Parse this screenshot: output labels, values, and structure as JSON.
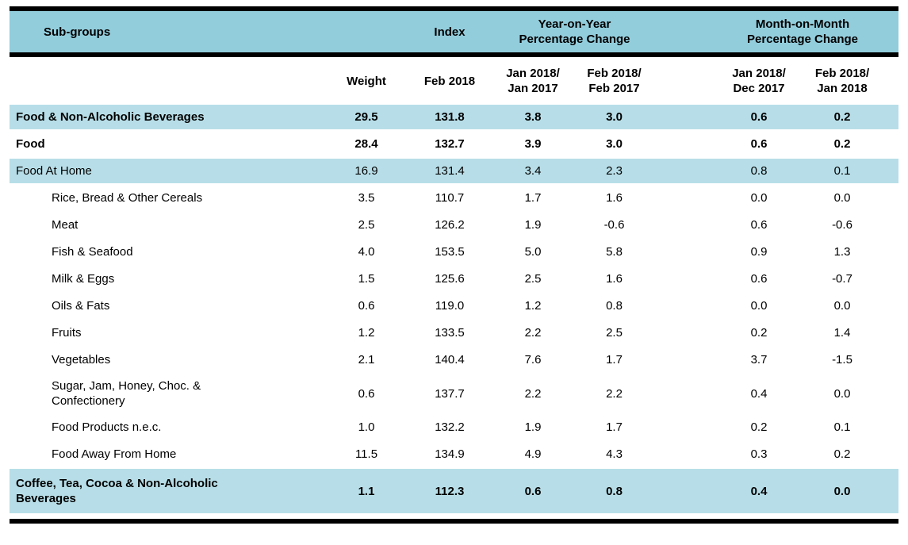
{
  "colors": {
    "group_header_bg": "#92CDDC",
    "highlight_row_bg": "#B7DEE8",
    "rule_color": "#000000",
    "text_color": "#000000"
  },
  "table": {
    "group_header": {
      "subgroups": "Sub-groups",
      "index": "Index",
      "yoy": "Year-on-Year\nPercentage Change",
      "mom": "Month-on-Month\nPercentage Change"
    },
    "column_header": {
      "weight": "Weight",
      "index_month": "Feb 2018",
      "yoy_col1": "Jan 2018/\nJan 2017",
      "yoy_col2": "Feb 2018/\nFeb 2017",
      "mom_col1": "Jan 2018/\nDec 2017",
      "mom_col2": "Feb 2018/\nJan 2018"
    },
    "rows": [
      {
        "name": "Food & Non-Alcoholic Beverages",
        "level": "group",
        "highlight": true,
        "bold": true,
        "values": [
          "29.5",
          "131.8",
          "3.8",
          "3.0",
          "0.6",
          "0.2"
        ]
      },
      {
        "name": "Food",
        "level": "group",
        "highlight": false,
        "bold": true,
        "values": [
          "28.4",
          "132.7",
          "3.9",
          "3.0",
          "0.6",
          "0.2"
        ]
      },
      {
        "name": "Food At Home",
        "level": "group",
        "highlight": true,
        "bold": false,
        "values": [
          "16.9",
          "131.4",
          "3.4",
          "2.3",
          "0.8",
          "0.1"
        ]
      },
      {
        "name": "Rice, Bread & Other Cereals",
        "level": "sub",
        "highlight": false,
        "bold": false,
        "values": [
          "3.5",
          "110.7",
          "1.7",
          "1.6",
          "0.0",
          "0.0"
        ]
      },
      {
        "name": "Meat",
        "level": "sub",
        "highlight": false,
        "bold": false,
        "values": [
          "2.5",
          "126.2",
          "1.9",
          "-0.6",
          "0.6",
          "-0.6"
        ]
      },
      {
        "name": "Fish & Seafood",
        "level": "sub",
        "highlight": false,
        "bold": false,
        "values": [
          "4.0",
          "153.5",
          "5.0",
          "5.8",
          "0.9",
          "1.3"
        ]
      },
      {
        "name": "Milk & Eggs",
        "level": "sub",
        "highlight": false,
        "bold": false,
        "values": [
          "1.5",
          "125.6",
          "2.5",
          "1.6",
          "0.6",
          "-0.7"
        ]
      },
      {
        "name": "Oils & Fats",
        "level": "sub",
        "highlight": false,
        "bold": false,
        "values": [
          "0.6",
          "119.0",
          "1.2",
          "0.8",
          "0.0",
          "0.0"
        ]
      },
      {
        "name": "Fruits",
        "level": "sub",
        "highlight": false,
        "bold": false,
        "values": [
          "1.2",
          "133.5",
          "2.2",
          "2.5",
          "0.2",
          "1.4"
        ]
      },
      {
        "name": "Vegetables",
        "level": "sub",
        "highlight": false,
        "bold": false,
        "values": [
          "2.1",
          "140.4",
          "7.6",
          "1.7",
          "3.7",
          "-1.5"
        ]
      },
      {
        "name": "Sugar, Jam, Honey, Choc. &\nConfectionery",
        "level": "sub",
        "highlight": false,
        "bold": false,
        "values": [
          "0.6",
          "137.7",
          "2.2",
          "2.2",
          "0.4",
          "0.0"
        ]
      },
      {
        "name": "Food Products n.e.c.",
        "level": "sub",
        "highlight": false,
        "bold": false,
        "values": [
          "1.0",
          "132.2",
          "1.9",
          "1.7",
          "0.2",
          "0.1"
        ]
      },
      {
        "name": "Food Away From Home",
        "level": "sub",
        "highlight": false,
        "bold": false,
        "values": [
          "11.5",
          "134.9",
          "4.9",
          "4.3",
          "0.3",
          "0.2"
        ]
      },
      {
        "name": "Coffee, Tea, Cocoa & Non-Alcoholic\nBeverages",
        "level": "group",
        "highlight": true,
        "bold": true,
        "values": [
          "1.1",
          "112.3",
          "0.6",
          "0.8",
          "0.4",
          "0.0"
        ]
      }
    ]
  }
}
